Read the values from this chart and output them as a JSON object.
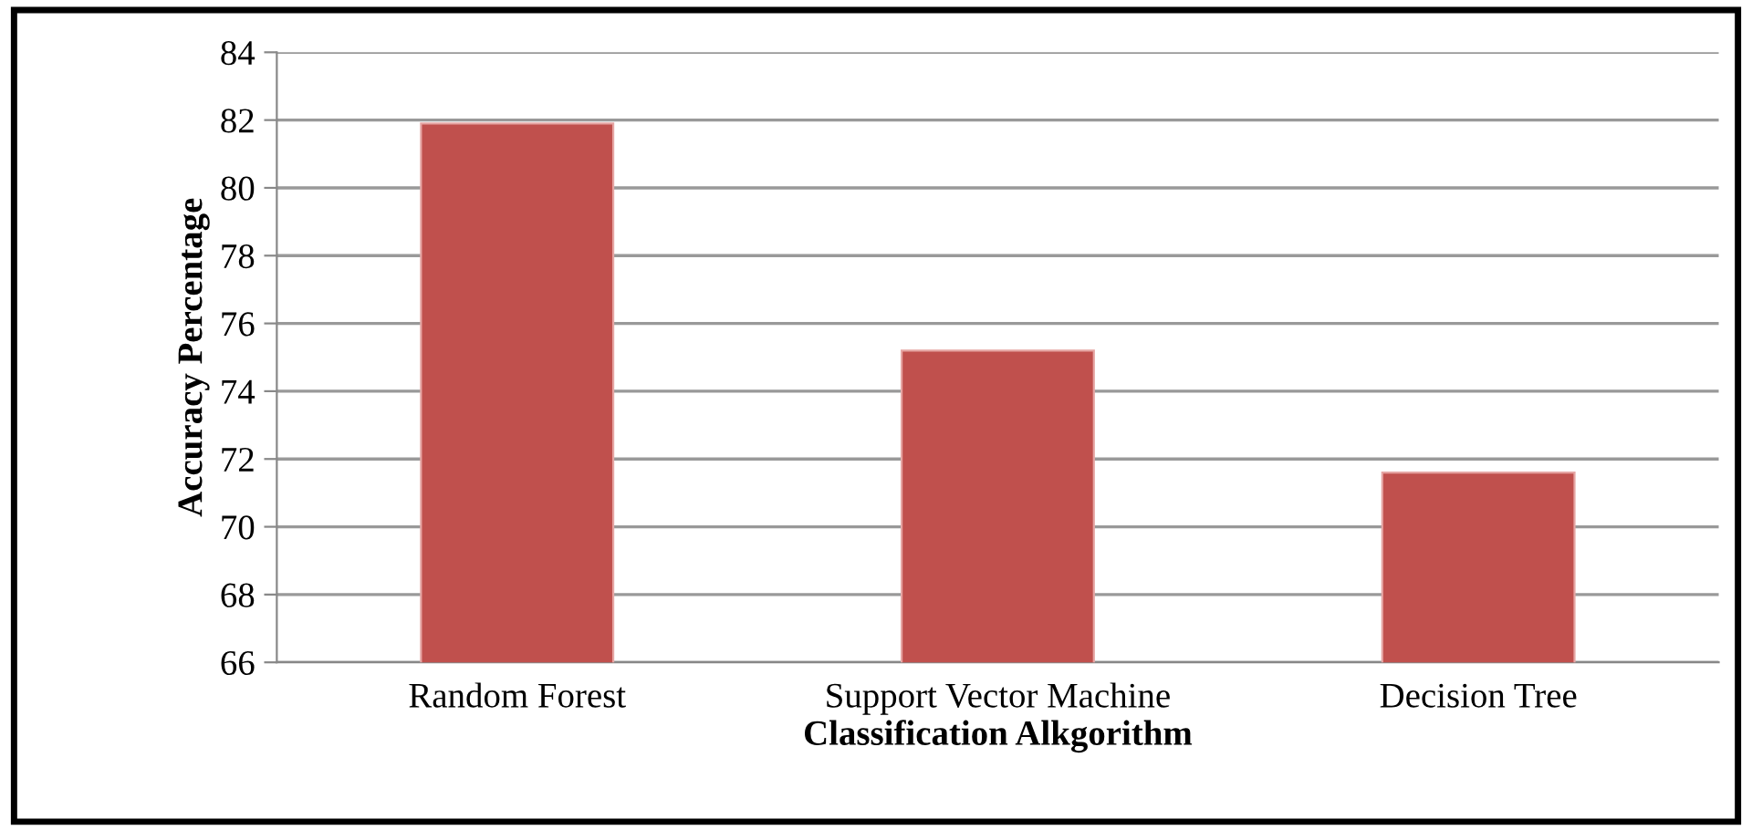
{
  "chart_data": {
    "type": "bar",
    "xlabel": "Classification Alkgorithm",
    "ylabel": "Accuracy Percentage",
    "categories": [
      "Random Forest",
      "Support Vector Machine",
      "Decision Tree"
    ],
    "values": [
      81.9,
      75.2,
      71.6
    ],
    "color": "#c0504d",
    "ylim": [
      66,
      84
    ],
    "yticks": [
      66,
      68,
      70,
      72,
      74,
      76,
      78,
      80,
      82,
      84
    ],
    "grid": "y"
  }
}
